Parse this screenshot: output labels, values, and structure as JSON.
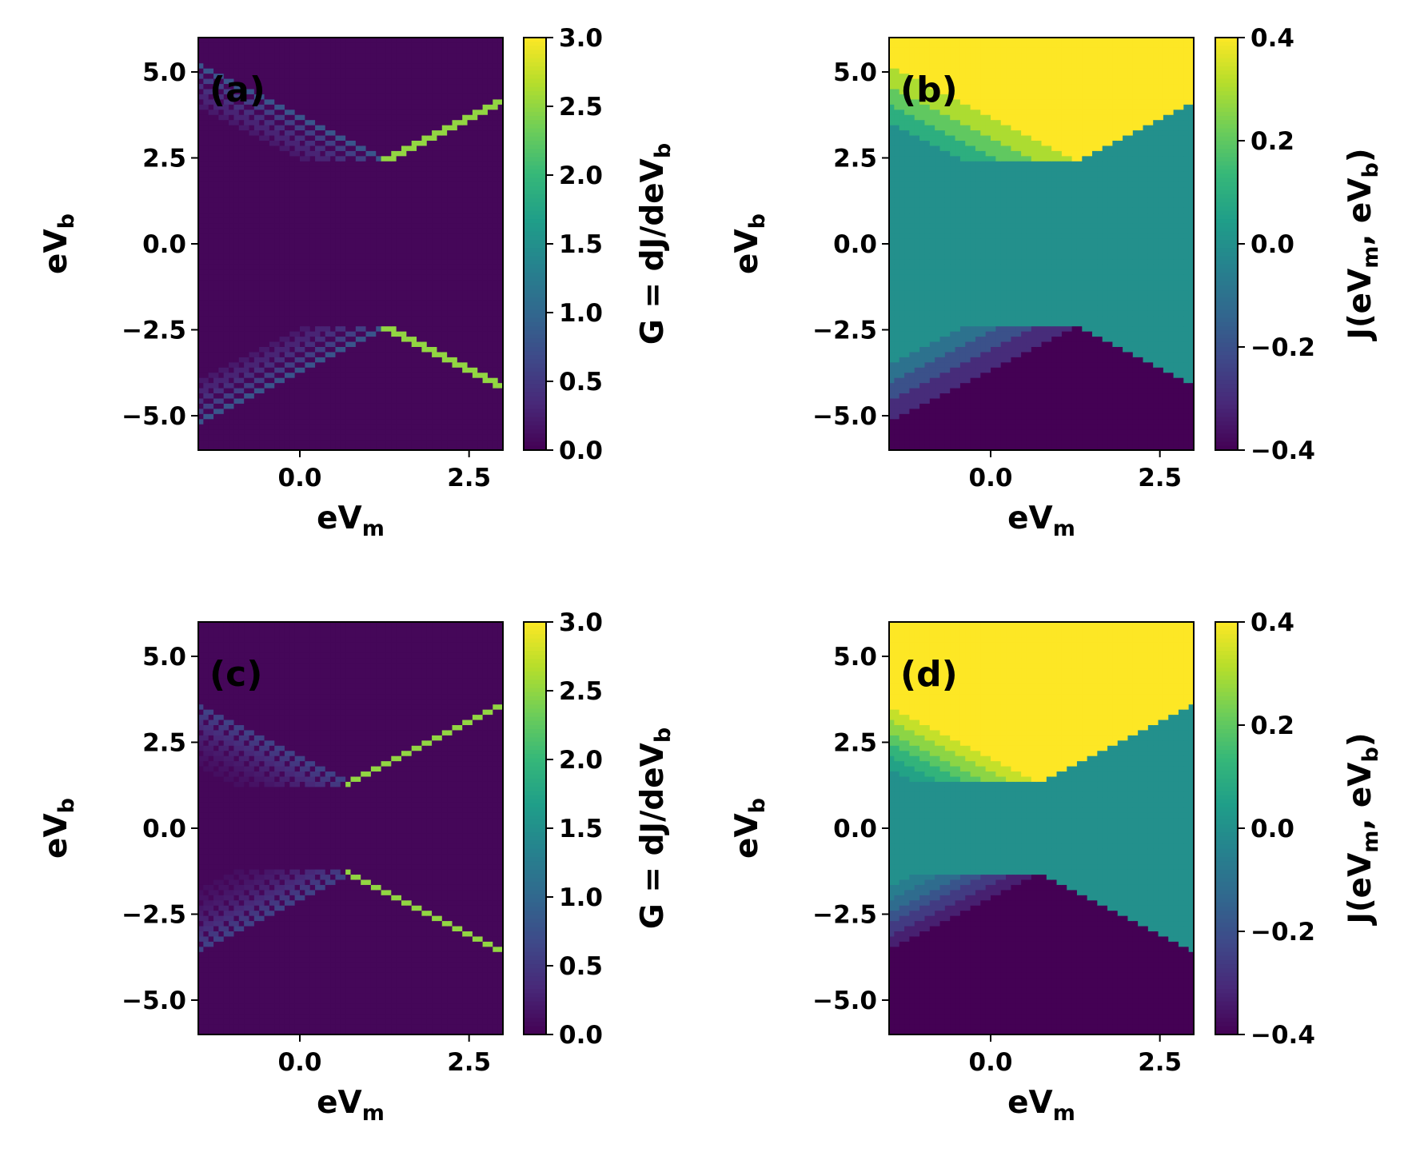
{
  "colors": {
    "viridis": [
      "#440154",
      "#482878",
      "#3e4989",
      "#31688e",
      "#26828e",
      "#1f9e89",
      "#35b779",
      "#6ece58",
      "#b5de2b",
      "#fde725"
    ]
  },
  "chart_data": [
    {
      "type": "heatmap",
      "panel_label": "(a)",
      "quantity": "conductance",
      "x": {
        "base": "eV",
        "sub": "m",
        "range": [
          -1.5,
          3.0
        ],
        "ticks": [
          "0.0",
          "2.5"
        ],
        "tick_values": [
          0.0,
          2.5
        ]
      },
      "y": {
        "base": "eV",
        "sub": "b",
        "range": [
          -6.0,
          6.0
        ],
        "ticks": [
          "5.0",
          "2.5",
          "0.0",
          "−2.5",
          "−5.0"
        ],
        "tick_values": [
          5.0,
          2.5,
          0.0,
          -2.5,
          -5.0
        ]
      },
      "colorbar": {
        "label_text": "G = dJ/deV",
        "label_sub": "b",
        "range": [
          0.0,
          3.0
        ],
        "ticks": [
          "3.0",
          "2.5",
          "2.0",
          "1.5",
          "1.0",
          "0.5",
          "0.0"
        ],
        "tick_values": [
          3.0,
          2.5,
          2.0,
          1.5,
          1.0,
          0.5,
          0.0
        ]
      },
      "params": {
        "vertex_x": 1.25,
        "vertex_y": 2.4,
        "diag_value": 2.5,
        "side_lines": 5,
        "side_spacing": 0.28,
        "side_value": 0.8,
        "decay": 0.72
      }
    },
    {
      "type": "heatmap",
      "panel_label": "(b)",
      "quantity": "current",
      "x": {
        "base": "eV",
        "sub": "m",
        "range": [
          -1.5,
          3.0
        ],
        "ticks": [
          "0.0",
          "2.5"
        ],
        "tick_values": [
          0.0,
          2.5
        ]
      },
      "y": {
        "base": "eV",
        "sub": "b",
        "range": [
          -6.0,
          6.0
        ],
        "ticks": [
          "5.0",
          "2.5",
          "0.0",
          "−2.5",
          "−5.0"
        ],
        "tick_values": [
          5.0,
          2.5,
          0.0,
          -2.5,
          -5.0
        ]
      },
      "colorbar": {
        "label_text": "J(eV",
        "label_sub": "m",
        "label_mid": ", eV",
        "label_sub2": "b",
        "label_end": ")",
        "range": [
          -0.4,
          0.4
        ],
        "ticks": [
          "0.4",
          "0.2",
          "0.0",
          "−0.2",
          "−0.4"
        ],
        "tick_values": [
          0.4,
          0.2,
          0.0,
          -0.2,
          -0.4
        ]
      },
      "params": {
        "vertex_x": 1.25,
        "vertex_y": 2.4,
        "levels": [
          0.4,
          0.3,
          0.2,
          0.1
        ],
        "band_width": 0.55
      }
    },
    {
      "type": "heatmap",
      "panel_label": "(c)",
      "quantity": "conductance",
      "x": {
        "base": "eV",
        "sub": "m",
        "range": [
          -1.5,
          3.0
        ],
        "ticks": [
          "0.0",
          "2.5"
        ],
        "tick_values": [
          0.0,
          2.5
        ]
      },
      "y": {
        "base": "eV",
        "sub": "b",
        "range": [
          -6.0,
          6.0
        ],
        "ticks": [
          "5.0",
          "2.5",
          "0.0",
          "−2.5",
          "−5.0"
        ],
        "tick_values": [
          5.0,
          2.5,
          0.0,
          -2.5,
          -5.0
        ]
      },
      "colorbar": {
        "label_text": "G = dJ/deV",
        "label_sub": "b",
        "range": [
          0.0,
          3.0
        ],
        "ticks": [
          "3.0",
          "2.5",
          "2.0",
          "1.5",
          "1.0",
          "0.5",
          "0.0"
        ],
        "tick_values": [
          3.0,
          2.5,
          2.0,
          1.5,
          1.0,
          0.5,
          0.0
        ]
      },
      "params": {
        "vertex_x": 0.7,
        "vertex_y": 1.3,
        "diag_value": 2.5,
        "side_lines": 9,
        "side_spacing": 0.2,
        "side_value": 0.6,
        "decay": 0.82
      }
    },
    {
      "type": "heatmap",
      "panel_label": "(d)",
      "quantity": "current",
      "x": {
        "base": "eV",
        "sub": "m",
        "range": [
          -1.5,
          3.0
        ],
        "ticks": [
          "0.0",
          "2.5"
        ],
        "tick_values": [
          0.0,
          2.5
        ]
      },
      "y": {
        "base": "eV",
        "sub": "b",
        "range": [
          -6.0,
          6.0
        ],
        "ticks": [
          "5.0",
          "2.5",
          "0.0",
          "−2.5",
          "−5.0"
        ],
        "tick_values": [
          5.0,
          2.5,
          0.0,
          -2.5,
          -5.0
        ]
      },
      "colorbar": {
        "label_text": "J(eV",
        "label_sub": "m",
        "label_mid": ", eV",
        "label_sub2": "b",
        "label_end": ")",
        "range": [
          -0.4,
          0.4
        ],
        "ticks": [
          "0.4",
          "0.2",
          "0.0",
          "−0.2",
          "−0.4"
        ],
        "tick_values": [
          0.4,
          0.2,
          0.0,
          -0.2,
          -0.4
        ]
      },
      "params": {
        "vertex_x": 0.7,
        "vertex_y": 1.3,
        "levels": [
          0.4,
          0.33,
          0.26,
          0.19,
          0.12,
          0.06
        ],
        "band_width": 0.35
      }
    }
  ]
}
